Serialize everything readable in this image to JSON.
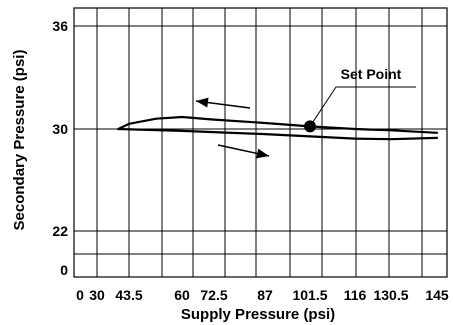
{
  "chart_data": {
    "type": "line",
    "title": "",
    "xlabel": "Supply Pressure (psi)",
    "ylabel": "Secondary Pressure (psi)",
    "x_tick_labels": [
      "0",
      "30",
      "43.5",
      "60",
      "72.5",
      "87",
      "101.5",
      "116",
      "130.5",
      "145"
    ],
    "y_tick_labels": [
      "0",
      "22",
      "30",
      "36"
    ],
    "grid": true,
    "series": [
      {
        "direction": "decreasing supply pressure",
        "x": [
          145,
          130.5,
          116,
          101.5,
          87,
          72.5,
          60,
          52,
          43.5,
          39
        ],
        "y": [
          29.7,
          29.9,
          30.0,
          30.15,
          30.35,
          30.55,
          30.7,
          30.6,
          30.3,
          30.0
        ]
      },
      {
        "direction": "increasing supply pressure",
        "x": [
          39,
          60,
          87,
          116,
          130.5,
          145
        ],
        "y": [
          30.0,
          29.85,
          29.6,
          29.25,
          29.2,
          29.3
        ]
      }
    ],
    "annotations": [
      {
        "text": "Set Point",
        "x": 101.5,
        "y": 30.15
      }
    ]
  }
}
